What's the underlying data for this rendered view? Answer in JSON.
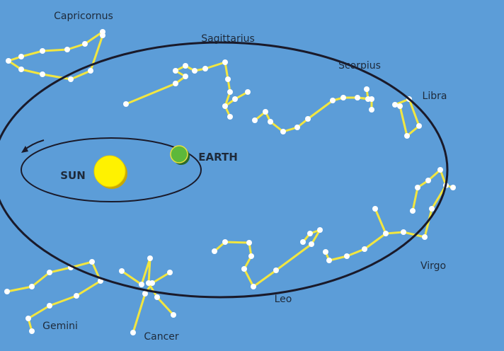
{
  "constellations": [
    "Capricornus",
    "Sagittarius",
    "Scorpius",
    "Libra",
    "Virgo",
    "Leo",
    "Cancer",
    "Gemini"
  ],
  "sun": "SUN",
  "earth": "EARTH"
}
